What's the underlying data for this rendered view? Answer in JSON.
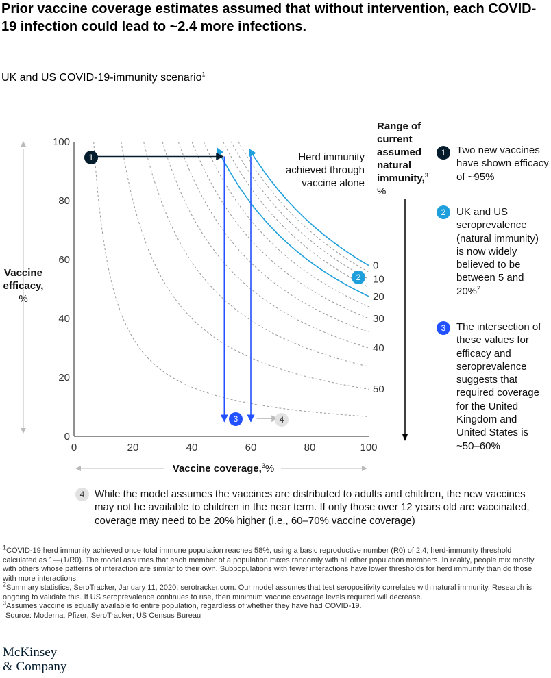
{
  "title": "Prior vaccine coverage estimates assumed that without intervention, each COVID-19 infection could lead to ~2.4 more infections.",
  "subtitle": "UK and US COVID-19-immunity scenario",
  "subtitle_sup": "1",
  "colors": {
    "navy": "#051c2c",
    "cyan": "#1f9fdc",
    "blue": "#2251ff",
    "grey": "#bbbbbb",
    "badge4_bg": "#e2e2e2"
  },
  "chart_data": {
    "type": "line",
    "title": "UK and US COVID-19-immunity scenario",
    "xlabel": "Vaccine coverage,",
    "xlabel_sup": "3",
    "xlabel_unit": "%",
    "ylabel_line1": "Vaccine",
    "ylabel_line2": "efficacy,",
    "ylabel_line3": "%",
    "xlim": [
      0,
      100
    ],
    "ylim": [
      0,
      100
    ],
    "xticks": [
      "0",
      "20",
      "40",
      "60",
      "80",
      "100"
    ],
    "yticks": [
      "0",
      "20",
      "40",
      "60",
      "80",
      "100"
    ],
    "right_axis_title": [
      "Range of",
      "current",
      "assumed",
      "natural",
      "immunity,"
    ],
    "right_axis_sup": "3",
    "right_axis_unit": "%",
    "herd_threshold_pct": 58,
    "series": [
      {
        "name": "0",
        "natural_immunity": 0,
        "style": "cyan",
        "label": "0"
      },
      {
        "name": "10",
        "natural_immunity": 10,
        "style": "dashed",
        "label": "10"
      },
      {
        "name": "20",
        "natural_immunity": 20,
        "style": "cyan",
        "label": "20"
      },
      {
        "name": "30",
        "natural_immunity": 30,
        "style": "dashed",
        "label": "30"
      },
      {
        "name": "40",
        "natural_immunity": 40,
        "style": "dashed",
        "label": "40"
      },
      {
        "name": "50",
        "natural_immunity": 50,
        "style": "dashed",
        "label": "50"
      },
      {
        "name": "5",
        "natural_immunity": 5,
        "style": "dashed"
      },
      {
        "name": "15",
        "natural_immunity": 15,
        "style": "dashed"
      },
      {
        "name": "25",
        "natural_immunity": 25,
        "style": "dashed"
      },
      {
        "name": "35",
        "natural_immunity": 35,
        "style": "dashed"
      },
      {
        "name": "45",
        "natural_immunity": 45,
        "style": "dashed"
      },
      {
        "name": "55",
        "natural_immunity": 55,
        "style": "dashed"
      }
    ],
    "annotation": [
      "Herd immunity",
      "achieved through",
      "vaccine alone"
    ],
    "markers": {
      "efficacy_line": {
        "x_from": 0,
        "x_to": 51,
        "y": 95
      },
      "coverage_lines": [
        {
          "x": 51,
          "y_from": 95,
          "y_to": 5
        },
        {
          "x": 60,
          "y_from": 95,
          "y_to": 5
        }
      ],
      "grey_arrow": {
        "x_from": 62,
        "x_to": 70,
        "y": 6
      }
    }
  },
  "badges": {
    "b1": "1",
    "b2": "2",
    "b3": "3",
    "b4": "4"
  },
  "notes": {
    "n1": "Two new vaccines have shown efficacy of ~95%",
    "n2": "UK and US seroprevalence (natural immunity) is now widely believed to be between 5 and 20%",
    "n2_sup": "2",
    "n3": "The intersection of these values for efficacy and seroprevalence suggests that required coverage for the United Kingdom and United States is ~50–60%",
    "n4": "While the model assumes the vaccines are distributed to adults and children, the new vaccines may not be available to children in the near term. If only those over 12 years old are vaccinated, coverage may need to be 20% higher (i.e., 60–70% vaccine coverage)"
  },
  "footnotes": {
    "f1_sup": "1",
    "f1": "COVID-19 herd immunity achieved once total immune population reaches 58%, using a basic reproductive number (R0) of 2.4; herd-immunity threshold calculated as 1—(1/R0). The model assumes that each member of a population mixes randomly with all other population members. In reality, people mix mostly with others whose patterns of interaction are similar to their own. Subpopulations with fewer interactions have lower thresholds for herd immunity than do those with more interactions.",
    "f2_sup": "2",
    "f2": "Summary statistics, SeroTracker, January 11, 2020, serotracker.com. Our model assumes that test seropositivity correlates with natural immunity. Research is ongoing to validate this. If US seroprevalence continues to rise, then minimum vaccine coverage levels required will decrease.",
    "f3_sup": "3",
    "f3": "Assumes vaccine is equally available to entire population, regardless of whether they have had COVID-19.",
    "source": "Source: Moderna; Pfizer; SeroTracker; US Census Bureau"
  },
  "logo": {
    "line1": "McKinsey",
    "line2": "& Company"
  }
}
